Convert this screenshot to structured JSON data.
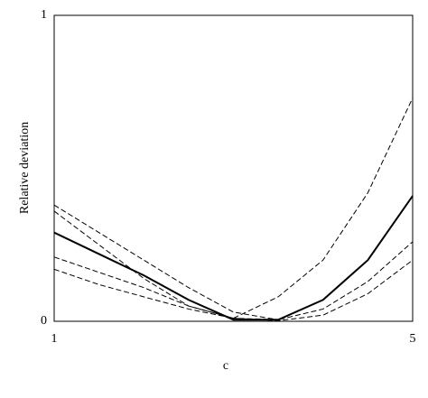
{
  "chart_data": {
    "type": "line",
    "xlabel": "c",
    "ylabel": "Relative deviation",
    "x": [
      1,
      1.5,
      2,
      2.5,
      3,
      3.5,
      4,
      4.5,
      5
    ],
    "series": [
      {
        "color": "#000000",
        "dash": false,
        "values": [
          0.29,
          0.22,
          0.15,
          0.07,
          0.005,
          0.005,
          0.07,
          0.2,
          0.41
        ]
      },
      {
        "color": "#000000",
        "dash": true,
        "values": [
          0.36,
          0.25,
          0.14,
          0.05,
          0.01,
          0.08,
          0.2,
          0.42,
          0.73
        ]
      },
      {
        "color": "#000000",
        "dash": true,
        "values": [
          0.38,
          0.29,
          0.2,
          0.11,
          0.03,
          0.005,
          0.07,
          0.2,
          0.41
        ]
      },
      {
        "color": "#000000",
        "dash": true,
        "values": [
          0.21,
          0.16,
          0.11,
          0.05,
          0.01,
          0.005,
          0.04,
          0.13,
          0.26
        ]
      },
      {
        "color": "#000000",
        "dash": true,
        "values": [
          0.17,
          0.12,
          0.08,
          0.04,
          0.01,
          0.002,
          0.02,
          0.09,
          0.2
        ]
      }
    ],
    "xlim": [
      1,
      5
    ],
    "ylim": [
      0,
      1
    ],
    "xticks": [
      1,
      5
    ],
    "yticks": [
      0,
      1
    ],
    "grid": false
  }
}
